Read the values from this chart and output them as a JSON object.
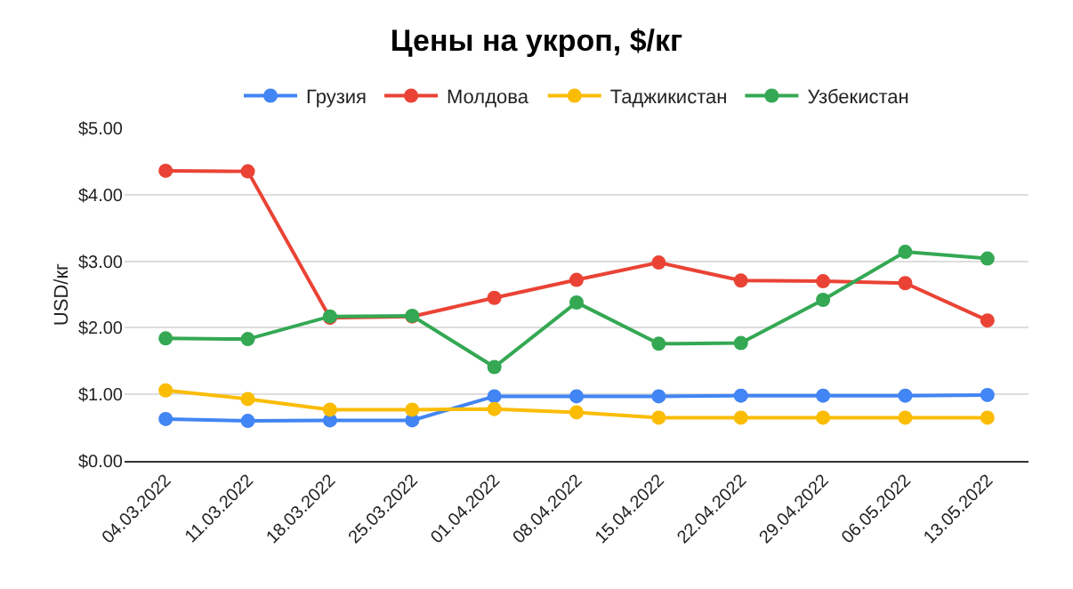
{
  "chart_data": {
    "type": "line",
    "title": "Цены на укроп, $/кг",
    "ylabel": "USD/кг",
    "categories": [
      "04.03.2022",
      "11.03.2022",
      "18.03.2022",
      "25.03.2022",
      "01.04.2022",
      "08.04.2022",
      "15.04.2022",
      "22.04.2022",
      "29.04.2022",
      "06.05.2022",
      "13.05.2022"
    ],
    "series": [
      {
        "name": "Грузия",
        "color": "#4285f4",
        "values": [
          0.63,
          0.6,
          0.61,
          0.61,
          0.97,
          0.97,
          0.97,
          0.98,
          0.98,
          0.98,
          0.99
        ]
      },
      {
        "name": "Молдова",
        "color": "#ea4335",
        "values": [
          4.36,
          4.35,
          2.15,
          2.17,
          2.45,
          2.72,
          2.98,
          2.71,
          2.7,
          2.67,
          2.11
        ]
      },
      {
        "name": "Таджикистан",
        "color": "#fbbc04",
        "values": [
          1.06,
          0.93,
          0.77,
          0.77,
          0.78,
          0.73,
          0.65,
          0.65,
          0.65,
          0.65,
          0.65
        ]
      },
      {
        "name": "Узбекистан",
        "color": "#34a853",
        "values": [
          1.84,
          1.83,
          2.17,
          2.18,
          1.41,
          2.38,
          1.76,
          1.77,
          2.42,
          3.14,
          3.04
        ]
      }
    ],
    "ylim": [
      0,
      5
    ],
    "yticks": [
      {
        "value": 0,
        "label": "$0.00"
      },
      {
        "value": 1,
        "label": "$1.00"
      },
      {
        "value": 2,
        "label": "$2.00"
      },
      {
        "value": 3,
        "label": "$3.00"
      },
      {
        "value": 4,
        "label": "$4.00"
      },
      {
        "value": 5,
        "label": "$5.00"
      }
    ],
    "grid": "y",
    "legend": "top",
    "marker": "circle",
    "line_style": "solid"
  }
}
